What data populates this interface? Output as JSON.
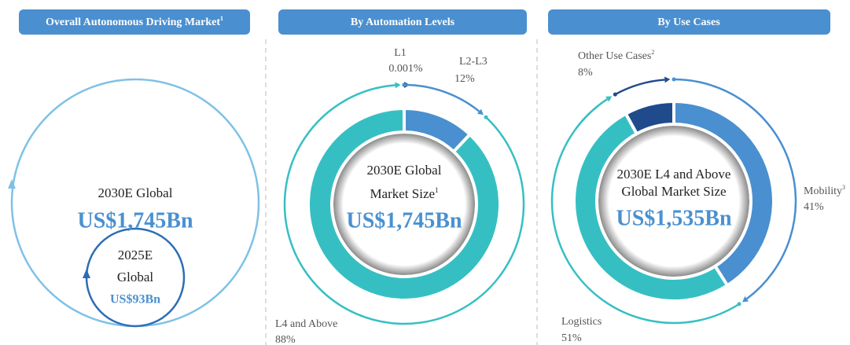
{
  "panels": [
    {
      "header": "Overall Autonomous Driving Market",
      "header_note": "1",
      "circles": [
        {
          "lines": [
            "2030E Global"
          ],
          "amount": "US$1,745Bn"
        },
        {
          "lines": [
            "2025E",
            "Global"
          ],
          "amount": "US$93Bn"
        }
      ]
    },
    {
      "header": "By Automation Levels",
      "center": {
        "lines": [
          "2030E Global",
          "Market Size"
        ],
        "note": "1",
        "amount": "US$1,745Bn"
      },
      "segments": [
        {
          "name": "L1",
          "value": 0.001,
          "value_label": "0.001%",
          "color": "#1f4b8c"
        },
        {
          "name": "L2-L3",
          "value": 12,
          "value_label": "12%",
          "color": "#4a8fd0"
        },
        {
          "name": "L4 and Above",
          "value": 88,
          "value_label": "88%",
          "color": "#36bfc3"
        }
      ]
    },
    {
      "header": "By Use Cases",
      "center": {
        "lines": [
          "2030E L4 and Above",
          "Global Market Size"
        ],
        "amount": "US$1,535Bn"
      },
      "segments": [
        {
          "name": "Mobility",
          "note": "3",
          "value": 41,
          "value_label": "41%",
          "color": "#4a8fd0"
        },
        {
          "name": "Logistics",
          "value": 51,
          "value_label": "51%",
          "color": "#36bfc3"
        },
        {
          "name": "Other Use Cases",
          "note": "2",
          "value": 8,
          "value_label": "8%",
          "color": "#1f4b8c"
        }
      ]
    }
  ]
}
